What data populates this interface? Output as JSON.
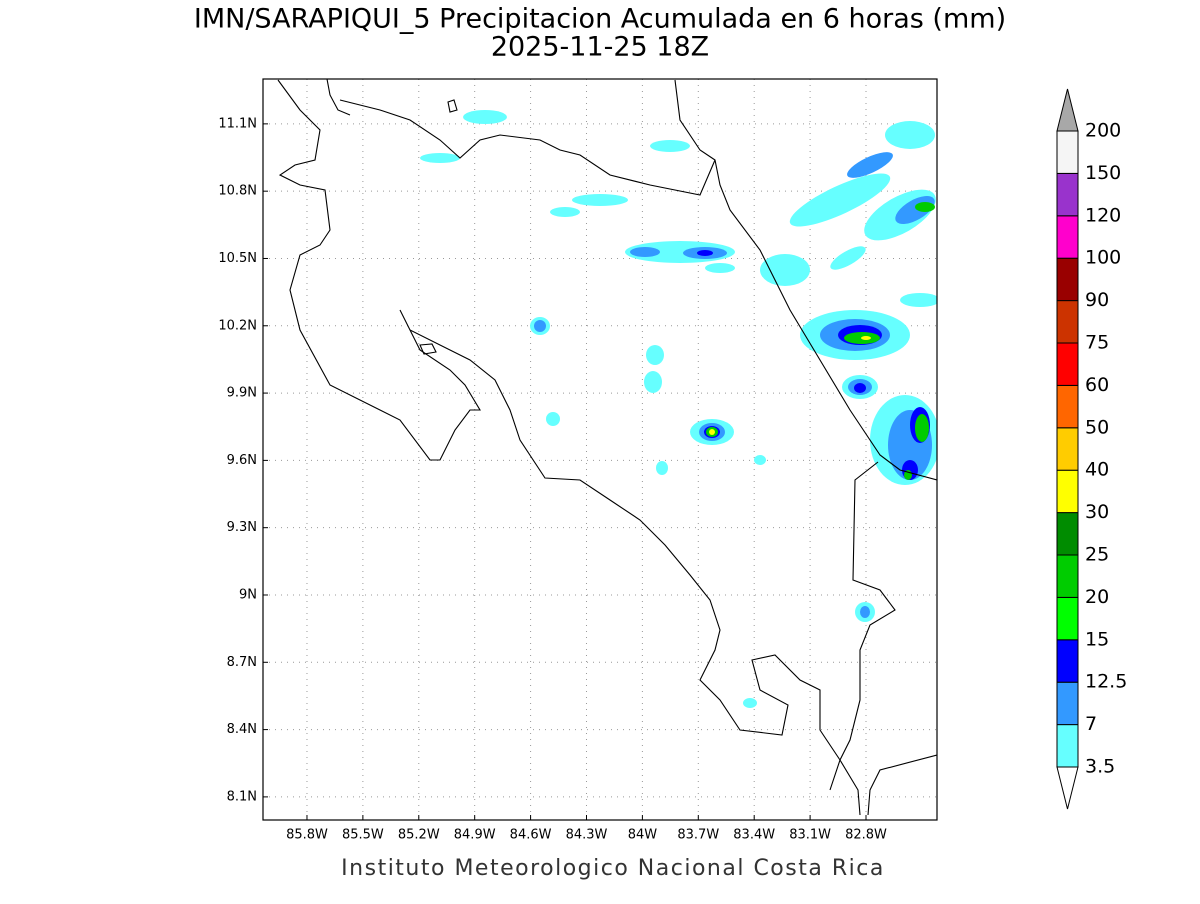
{
  "title": "IMN/SARAPIQUI_5 Precipitacion Acumulada en 6 horas (mm)",
  "subtitle": "2025-11-25 18Z",
  "footer": "Instituto Meteorologico Nacional Costa Rica",
  "map": {
    "lonlim": [
      -86.036,
      -82.419
    ],
    "latlim": [
      7.997,
      11.3
    ],
    "lonticks": [
      {
        "value": -85.8,
        "label": "85.8W"
      },
      {
        "value": -85.5,
        "label": "85.5W"
      },
      {
        "value": -85.2,
        "label": "85.2W"
      },
      {
        "value": -84.9,
        "label": "84.9W"
      },
      {
        "value": -84.6,
        "label": "84.6W"
      },
      {
        "value": -84.3,
        "label": "84.3W"
      },
      {
        "value": -84,
        "label": "84W"
      },
      {
        "value": -83.7,
        "label": "83.7W"
      },
      {
        "value": -83.4,
        "label": "83.4W"
      },
      {
        "value": -83.1,
        "label": "83.1W"
      },
      {
        "value": -82.8,
        "label": "82.8W"
      }
    ],
    "latticks": [
      {
        "value": 11.1,
        "label": "11.1N"
      },
      {
        "value": 10.8,
        "label": "10.8N"
      },
      {
        "value": 10.5,
        "label": "10.5N"
      },
      {
        "value": 10.2,
        "label": "10.2N"
      },
      {
        "value": 9.9,
        "label": "9.9N"
      },
      {
        "value": 9.6,
        "label": "9.6N"
      },
      {
        "value": 9.3,
        "label": "9.3N"
      },
      {
        "value": 9,
        "label": "9N"
      },
      {
        "value": 8.7,
        "label": "8.7N"
      },
      {
        "value": 8.4,
        "label": "8.4N"
      },
      {
        "value": 8.1,
        "label": "8.1N"
      }
    ],
    "grid": true
  },
  "colorbar": {
    "levels": [
      3.5,
      7,
      12.5,
      15,
      20,
      25,
      30,
      40,
      50,
      60,
      75,
      90,
      100,
      120,
      150,
      200
    ],
    "colors": [
      "#66ffff",
      "#3399ff",
      "#0000ff",
      "#00ff00",
      "#00cc00",
      "#008c00",
      "#ffff00",
      "#ffcc00",
      "#ff6600",
      "#ff0000",
      "#cc3300",
      "#990000",
      "#ff00cc",
      "#9933cc",
      "#f5f5f5"
    ],
    "under_color": "#ffffff",
    "over_color": "#a8a8a8"
  }
}
